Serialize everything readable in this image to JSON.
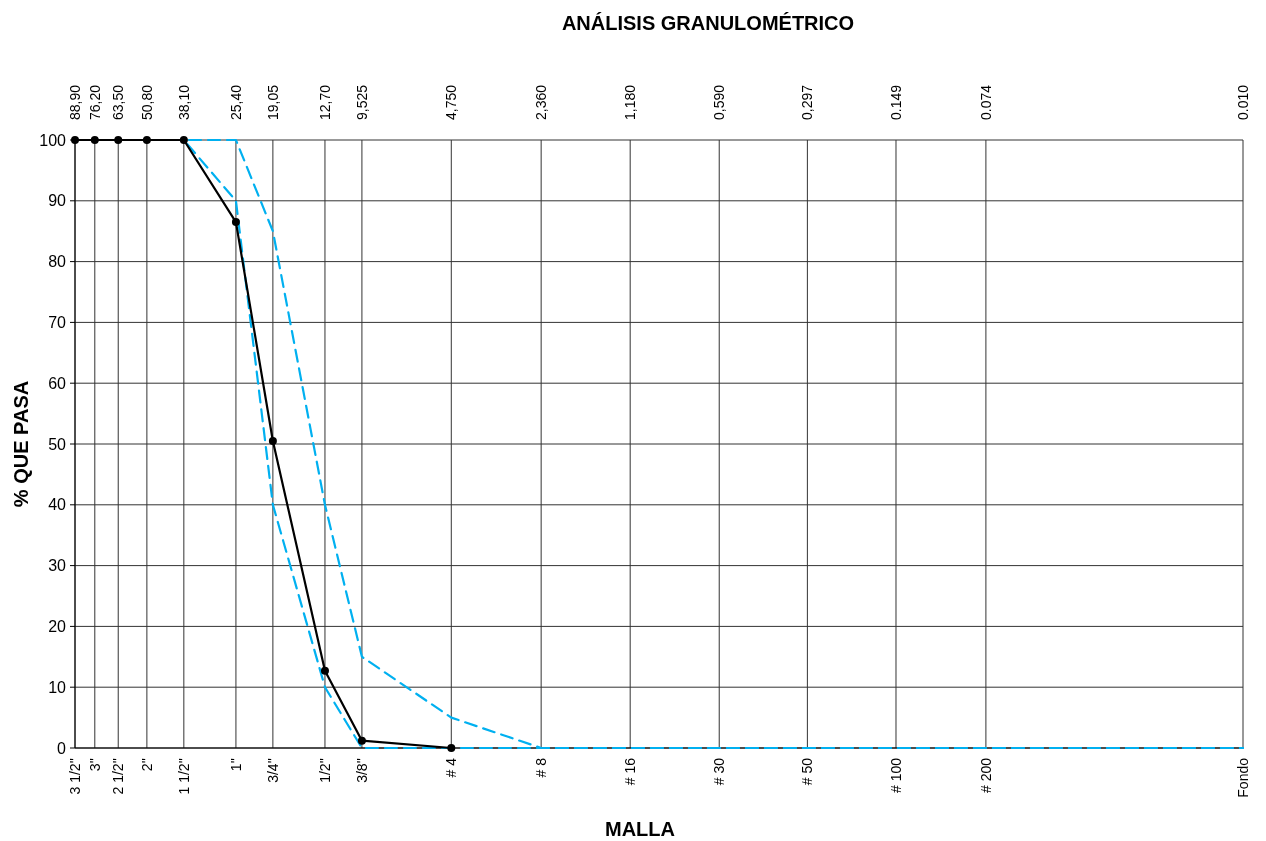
{
  "chart_data": {
    "type": "line",
    "title": "ANÁLISIS GRANULOMÉTRICO",
    "xlabel": "MALLA",
    "ylabel": "% QUE PASA",
    "log": "x",
    "grid": true,
    "xlim": [
      88.9,
      0.01
    ],
    "xticks": [
      {
        "value": 88.9,
        "label": "88,90"
      },
      {
        "value": 76.2,
        "label": "76,20"
      },
      {
        "value": 63.5,
        "label": "63,50"
      },
      {
        "value": 50.8,
        "label": "50,80"
      },
      {
        "value": 38.1,
        "label": "38,10"
      },
      {
        "value": 25.4,
        "label": "25,40"
      },
      {
        "value": 19.05,
        "label": "19,05"
      },
      {
        "value": 12.7,
        "label": "12,70"
      },
      {
        "value": 9.525,
        "label": "9,525"
      },
      {
        "value": 4.75,
        "label": "4,750"
      },
      {
        "value": 2.36,
        "label": "2,360"
      },
      {
        "value": 1.18,
        "label": "1,180"
      },
      {
        "value": 0.59,
        "label": "0,590"
      },
      {
        "value": 0.297,
        "label": "0,297"
      },
      {
        "value": 0.149,
        "label": "0.149"
      },
      {
        "value": 0.074,
        "label": "0.074"
      },
      {
        "value": 0.01,
        "label": "0.010"
      }
    ],
    "annotations": [
      "3 1/2''",
      "3''",
      "2 1/2''",
      "2''",
      "1 1/2''",
      "1''",
      "3/4''",
      "1/2''",
      "3/8''",
      "# 4",
      "# 8",
      "# 16",
      "# 30",
      "# 50",
      "# 100",
      "# 200",
      "Fondo"
    ],
    "ylim": [
      0,
      100
    ],
    "yticks": [
      0,
      10,
      20,
      30,
      40,
      50,
      60,
      70,
      80,
      90,
      100
    ],
    "series": [
      {
        "color": "#00b0f0",
        "line_style": "dashed",
        "marker": "none",
        "x": [
          88.9,
          38.1,
          25.4,
          19.05,
          12.7,
          9.525,
          4.75,
          2.36,
          1.18,
          0.59,
          0.297,
          0.149,
          0.074,
          0.01
        ],
        "values": [
          100,
          100,
          90,
          40,
          10,
          0,
          0,
          0,
          0,
          0,
          0,
          0,
          0,
          0
        ]
      },
      {
        "color": "#00b0f0",
        "line_style": "dashed",
        "marker": "none",
        "x": [
          88.9,
          38.1,
          25.4,
          19.05,
          12.7,
          9.525,
          4.75,
          2.36,
          1.18,
          0.59,
          0.297,
          0.149,
          0.074,
          0.01
        ],
        "values": [
          100,
          100,
          100,
          85,
          40,
          15,
          5,
          0,
          0,
          0,
          0,
          0,
          0,
          0
        ]
      },
      {
        "color": "#000000",
        "line_style": "solid",
        "marker": "circle",
        "x": [
          88.9,
          76.2,
          63.5,
          50.8,
          38.1,
          25.4,
          19.05,
          12.7,
          9.525,
          4.75
        ],
        "values": [
          100,
          100,
          100,
          100,
          100,
          86.5,
          50.5,
          12.7,
          1.2,
          0
        ]
      }
    ]
  }
}
